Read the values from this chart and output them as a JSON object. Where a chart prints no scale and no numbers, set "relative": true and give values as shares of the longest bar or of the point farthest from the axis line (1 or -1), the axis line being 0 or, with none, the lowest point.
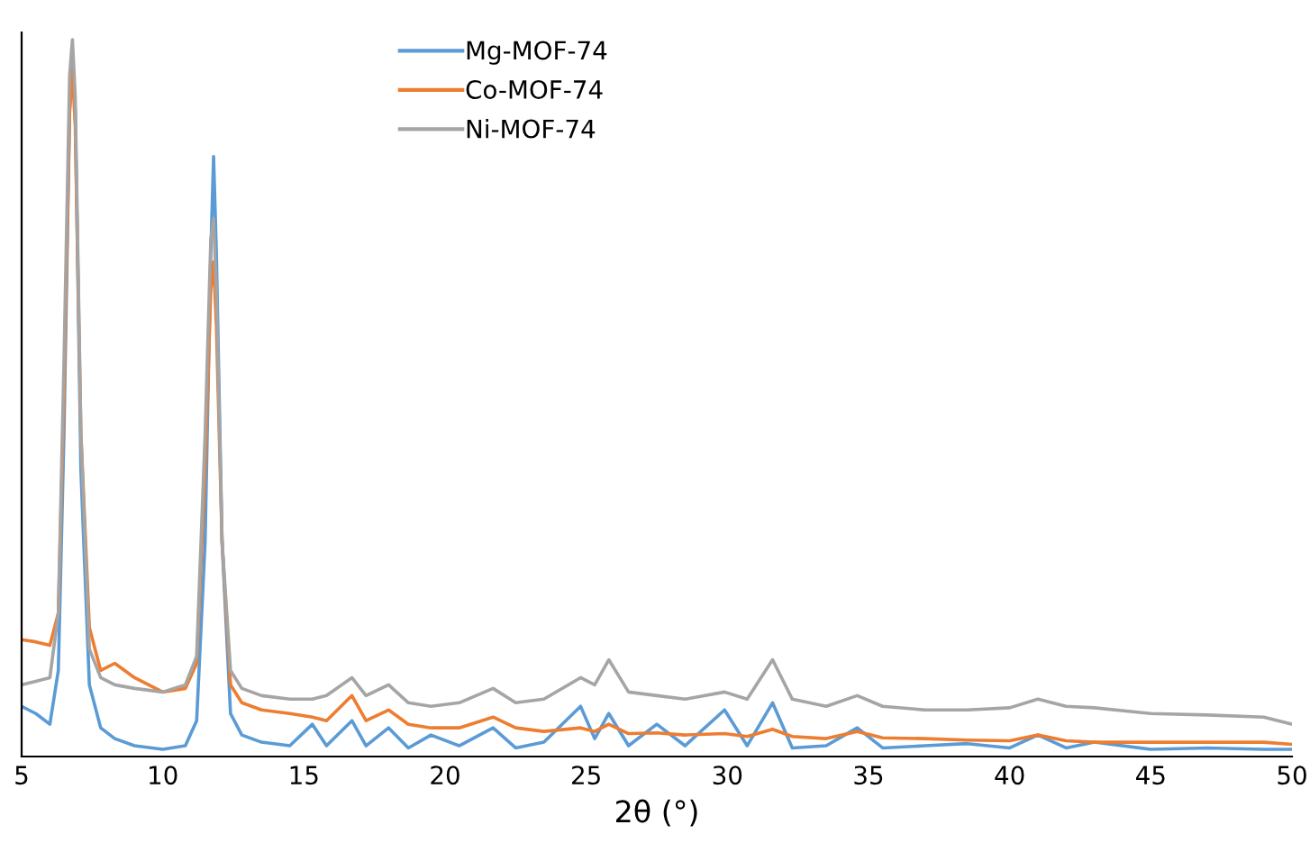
{
  "chart_data": {
    "type": "line",
    "xlabel": "2θ (°)",
    "relative": true,
    "legend": "top left",
    "grid": false,
    "marker": "none",
    "line_style": "solid",
    "xlim": [
      5,
      50
    ],
    "xticks": [
      5,
      10,
      15,
      20,
      25,
      30,
      35,
      40,
      45,
      50
    ],
    "x": [
      5,
      5.5,
      6,
      6.3,
      6.5,
      6.7,
      6.8,
      6.9,
      7.1,
      7.4,
      7.8,
      8.3,
      9,
      10,
      10.8,
      11.2,
      11.5,
      11.7,
      11.8,
      11.9,
      12.1,
      12.4,
      12.8,
      13.5,
      14.5,
      15.3,
      15.8,
      16.7,
      17.2,
      18,
      18.7,
      19.5,
      20.5,
      21.7,
      22.5,
      23.5,
      24.8,
      25.3,
      25.8,
      26.5,
      27.5,
      28.5,
      29.9,
      30.7,
      31.6,
      32.3,
      33.5,
      34.6,
      35.5,
      37,
      38.5,
      40,
      41,
      42,
      43,
      45,
      47,
      49,
      50
    ],
    "series": [
      {
        "name": "Mg-MOF-74",
        "color": "#5b9bd5",
        "values": [
          0.07,
          0.06,
          0.045,
          0.12,
          0.45,
          0.9,
          0.98,
          0.9,
          0.4,
          0.1,
          0.04,
          0.025,
          0.015,
          0.01,
          0.015,
          0.05,
          0.3,
          0.7,
          0.837,
          0.7,
          0.3,
          0.06,
          0.03,
          0.02,
          0.015,
          0.045,
          0.015,
          0.05,
          0.015,
          0.04,
          0.012,
          0.03,
          0.015,
          0.04,
          0.012,
          0.02,
          0.07,
          0.025,
          0.06,
          0.015,
          0.045,
          0.015,
          0.065,
          0.015,
          0.075,
          0.012,
          0.015,
          0.04,
          0.012,
          0.015,
          0.018,
          0.012,
          0.03,
          0.012,
          0.02,
          0.01,
          0.012,
          0.01,
          0.01
        ]
      },
      {
        "name": "Co-MOF-74",
        "color": "#ed7d31",
        "values": [
          0.163,
          0.16,
          0.155,
          0.2,
          0.5,
          0.9,
          0.955,
          0.88,
          0.45,
          0.18,
          0.12,
          0.13,
          0.11,
          0.09,
          0.095,
          0.13,
          0.4,
          0.65,
          0.69,
          0.6,
          0.3,
          0.1,
          0.075,
          0.065,
          0.06,
          0.055,
          0.05,
          0.085,
          0.05,
          0.065,
          0.045,
          0.04,
          0.04,
          0.055,
          0.04,
          0.035,
          0.04,
          0.035,
          0.045,
          0.032,
          0.033,
          0.03,
          0.032,
          0.028,
          0.038,
          0.028,
          0.025,
          0.035,
          0.026,
          0.025,
          0.023,
          0.022,
          0.03,
          0.022,
          0.02,
          0.02,
          0.02,
          0.02,
          0.017
        ]
      },
      {
        "name": "Ni-MOF-74",
        "color": "#a5a5a5",
        "values": [
          0.1,
          0.105,
          0.11,
          0.2,
          0.55,
          0.95,
          1.0,
          0.92,
          0.45,
          0.15,
          0.11,
          0.1,
          0.095,
          0.09,
          0.1,
          0.14,
          0.45,
          0.72,
          0.75,
          0.65,
          0.3,
          0.12,
          0.095,
          0.085,
          0.08,
          0.08,
          0.085,
          0.11,
          0.085,
          0.1,
          0.075,
          0.07,
          0.075,
          0.095,
          0.075,
          0.08,
          0.11,
          0.1,
          0.135,
          0.09,
          0.085,
          0.08,
          0.09,
          0.08,
          0.135,
          0.08,
          0.07,
          0.085,
          0.07,
          0.065,
          0.065,
          0.068,
          0.08,
          0.07,
          0.068,
          0.06,
          0.058,
          0.055,
          0.045
        ]
      }
    ]
  }
}
